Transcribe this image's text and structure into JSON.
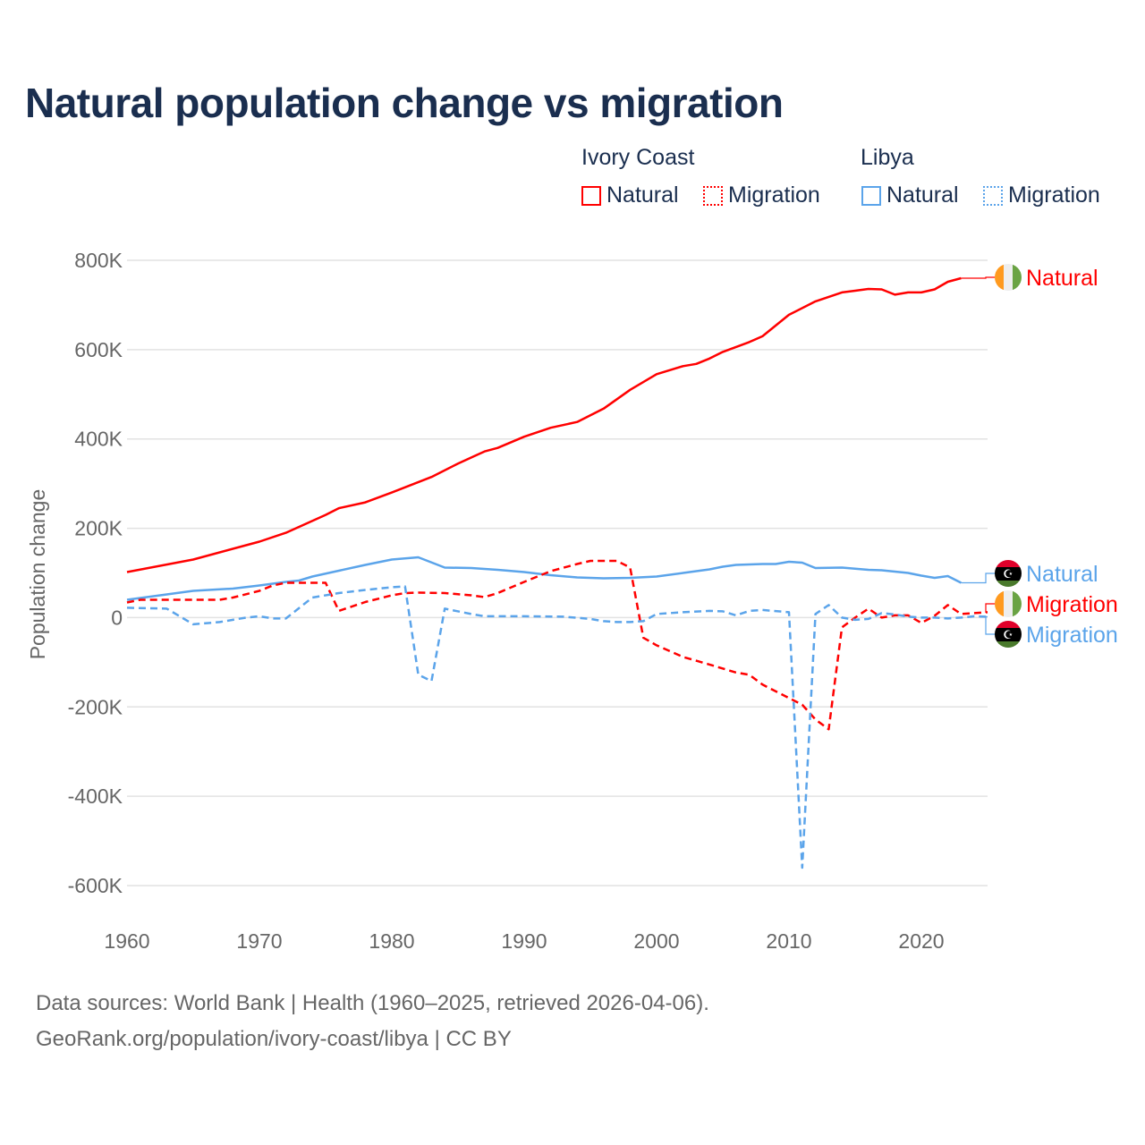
{
  "chart_data": {
    "type": "line",
    "title": "Natural population change vs migration",
    "xlabel": "",
    "ylabel": "Population change",
    "xlim": [
      1960,
      2025
    ],
    "ylim": [
      -600000,
      800000
    ],
    "x_ticks": [
      "1960",
      "1970",
      "1980",
      "1990",
      "2000",
      "2010",
      "2020"
    ],
    "y_ticks": [
      {
        "v": 800000,
        "label": "800K"
      },
      {
        "v": 600000,
        "label": "600K"
      },
      {
        "v": 400000,
        "label": "400K"
      },
      {
        "v": 200000,
        "label": "200K"
      },
      {
        "v": 0,
        "label": "0"
      },
      {
        "v": -200000,
        "label": "-200K"
      },
      {
        "v": -400000,
        "label": "-400K"
      },
      {
        "v": -600000,
        "label": "-600K"
      }
    ],
    "grid": true,
    "legend_groups": [
      {
        "country": "Ivory Coast",
        "items": [
          "Natural",
          "Migration"
        ]
      },
      {
        "country": "Libya",
        "items": [
          "Natural",
          "Migration"
        ]
      }
    ],
    "series": [
      {
        "name": "Natural",
        "country": "Ivory Coast",
        "color": "#ff0000",
        "dash": false,
        "flag": "ivory-coast",
        "points": [
          [
            1960,
            102000
          ],
          [
            1965,
            130000
          ],
          [
            1970,
            170000
          ],
          [
            1972,
            190000
          ],
          [
            1975,
            230000
          ],
          [
            1976,
            245000
          ],
          [
            1978,
            258000
          ],
          [
            1980,
            280000
          ],
          [
            1983,
            315000
          ],
          [
            1985,
            345000
          ],
          [
            1987,
            372000
          ],
          [
            1988,
            380000
          ],
          [
            1990,
            405000
          ],
          [
            1992,
            425000
          ],
          [
            1994,
            438000
          ],
          [
            1996,
            468000
          ],
          [
            1998,
            510000
          ],
          [
            2000,
            545000
          ],
          [
            2002,
            563000
          ],
          [
            2003,
            568000
          ],
          [
            2004,
            580000
          ],
          [
            2005,
            595000
          ],
          [
            2007,
            617000
          ],
          [
            2008,
            630000
          ],
          [
            2010,
            678000
          ],
          [
            2012,
            708000
          ],
          [
            2014,
            728000
          ],
          [
            2015,
            732000
          ],
          [
            2016,
            736000
          ],
          [
            2017,
            735000
          ],
          [
            2018,
            723000
          ],
          [
            2019,
            728000
          ],
          [
            2020,
            728000
          ],
          [
            2021,
            735000
          ],
          [
            2022,
            752000
          ],
          [
            2023,
            760000
          ]
        ]
      },
      {
        "name": "Natural",
        "country": "Libya",
        "color": "#5ba4ea",
        "dash": false,
        "flag": "libya",
        "points": [
          [
            1960,
            40000
          ],
          [
            1965,
            60000
          ],
          [
            1968,
            65000
          ],
          [
            1970,
            72000
          ],
          [
            1972,
            80000
          ],
          [
            1973,
            83000
          ],
          [
            1974,
            92000
          ],
          [
            1976,
            105000
          ],
          [
            1978,
            118000
          ],
          [
            1980,
            130000
          ],
          [
            1982,
            135000
          ],
          [
            1984,
            112000
          ],
          [
            1986,
            111000
          ],
          [
            1988,
            107000
          ],
          [
            1990,
            102000
          ],
          [
            1992,
            95000
          ],
          [
            1994,
            90000
          ],
          [
            1996,
            88000
          ],
          [
            1998,
            89000
          ],
          [
            2000,
            92000
          ],
          [
            2002,
            100000
          ],
          [
            2004,
            108000
          ],
          [
            2005,
            114000
          ],
          [
            2006,
            118000
          ],
          [
            2008,
            120000
          ],
          [
            2009,
            120000
          ],
          [
            2010,
            125000
          ],
          [
            2011,
            123000
          ],
          [
            2012,
            111000
          ],
          [
            2014,
            112000
          ],
          [
            2016,
            107000
          ],
          [
            2017,
            106000
          ],
          [
            2018,
            103000
          ],
          [
            2019,
            100000
          ],
          [
            2020,
            94000
          ],
          [
            2021,
            89000
          ],
          [
            2022,
            93000
          ],
          [
            2023,
            78000
          ]
        ]
      },
      {
        "name": "Migration",
        "country": "Ivory Coast",
        "color": "#ff0000",
        "dash": true,
        "flag": "ivory-coast",
        "points": [
          [
            1960,
            34000
          ],
          [
            1961,
            40000
          ],
          [
            1967,
            40000
          ],
          [
            1968,
            45000
          ],
          [
            1970,
            60000
          ],
          [
            1971,
            72000
          ],
          [
            1972,
            78000
          ],
          [
            1975,
            78000
          ],
          [
            1976,
            15000
          ],
          [
            1978,
            35000
          ],
          [
            1980,
            50000
          ],
          [
            1981,
            55000
          ],
          [
            1982,
            56000
          ],
          [
            1984,
            55000
          ],
          [
            1986,
            50000
          ],
          [
            1987,
            46000
          ],
          [
            1988,
            55000
          ],
          [
            1990,
            80000
          ],
          [
            1992,
            104000
          ],
          [
            1994,
            120000
          ],
          [
            1995,
            127000
          ],
          [
            1997,
            127000
          ],
          [
            1998,
            112000
          ],
          [
            1999,
            -45000
          ],
          [
            2000,
            -62000
          ],
          [
            2002,
            -88000
          ],
          [
            2004,
            -105000
          ],
          [
            2006,
            -123000
          ],
          [
            2007,
            -128000
          ],
          [
            2008,
            -150000
          ],
          [
            2010,
            -180000
          ],
          [
            2011,
            -195000
          ],
          [
            2012,
            -228000
          ],
          [
            2013,
            -250000
          ],
          [
            2014,
            -22000
          ],
          [
            2015,
            0
          ],
          [
            2016,
            20000
          ],
          [
            2017,
            0
          ],
          [
            2018,
            5000
          ],
          [
            2019,
            5000
          ],
          [
            2020,
            -12000
          ],
          [
            2021,
            4000
          ],
          [
            2022,
            28000
          ],
          [
            2023,
            8000
          ],
          [
            2024,
            10000
          ],
          [
            2025,
            12000
          ]
        ]
      },
      {
        "name": "Migration",
        "country": "Libya",
        "color": "#5ba4ea",
        "dash": true,
        "flag": "libya",
        "points": [
          [
            1960,
            22000
          ],
          [
            1963,
            20000
          ],
          [
            1965,
            -15000
          ],
          [
            1967,
            -10000
          ],
          [
            1969,
            0
          ],
          [
            1970,
            3000
          ],
          [
            1971,
            -2000
          ],
          [
            1972,
            -2000
          ],
          [
            1974,
            45000
          ],
          [
            1976,
            55000
          ],
          [
            1978,
            62000
          ],
          [
            1980,
            68000
          ],
          [
            1981,
            70000
          ],
          [
            1982,
            -128000
          ],
          [
            1983,
            -142000
          ],
          [
            1984,
            20000
          ],
          [
            1986,
            8000
          ],
          [
            1987,
            3000
          ],
          [
            1990,
            3000
          ],
          [
            1993,
            2000
          ],
          [
            1995,
            -3000
          ],
          [
            1996,
            -8000
          ],
          [
            1997,
            -10000
          ],
          [
            1998,
            -10000
          ],
          [
            1999,
            -8000
          ],
          [
            2000,
            8000
          ],
          [
            2002,
            12000
          ],
          [
            2004,
            15000
          ],
          [
            2005,
            14000
          ],
          [
            2006,
            5000
          ],
          [
            2007,
            15000
          ],
          [
            2008,
            17000
          ],
          [
            2010,
            12000
          ],
          [
            2011,
            -560000
          ],
          [
            2012,
            8000
          ],
          [
            2013,
            28000
          ],
          [
            2014,
            0
          ],
          [
            2015,
            -5000
          ],
          [
            2016,
            -3000
          ],
          [
            2017,
            10000
          ],
          [
            2018,
            7000
          ],
          [
            2019,
            2000
          ],
          [
            2020,
            0
          ],
          [
            2021,
            0
          ],
          [
            2022,
            -2000
          ],
          [
            2023,
            0
          ],
          [
            2024,
            3000
          ],
          [
            2025,
            2000
          ]
        ]
      }
    ]
  },
  "source": {
    "line1": "Data sources: World Bank | Health (1960–2025, retrieved 2026-04-06).",
    "line2": "GeoRank.org/population/ivory-coast/libya | CC BY"
  }
}
